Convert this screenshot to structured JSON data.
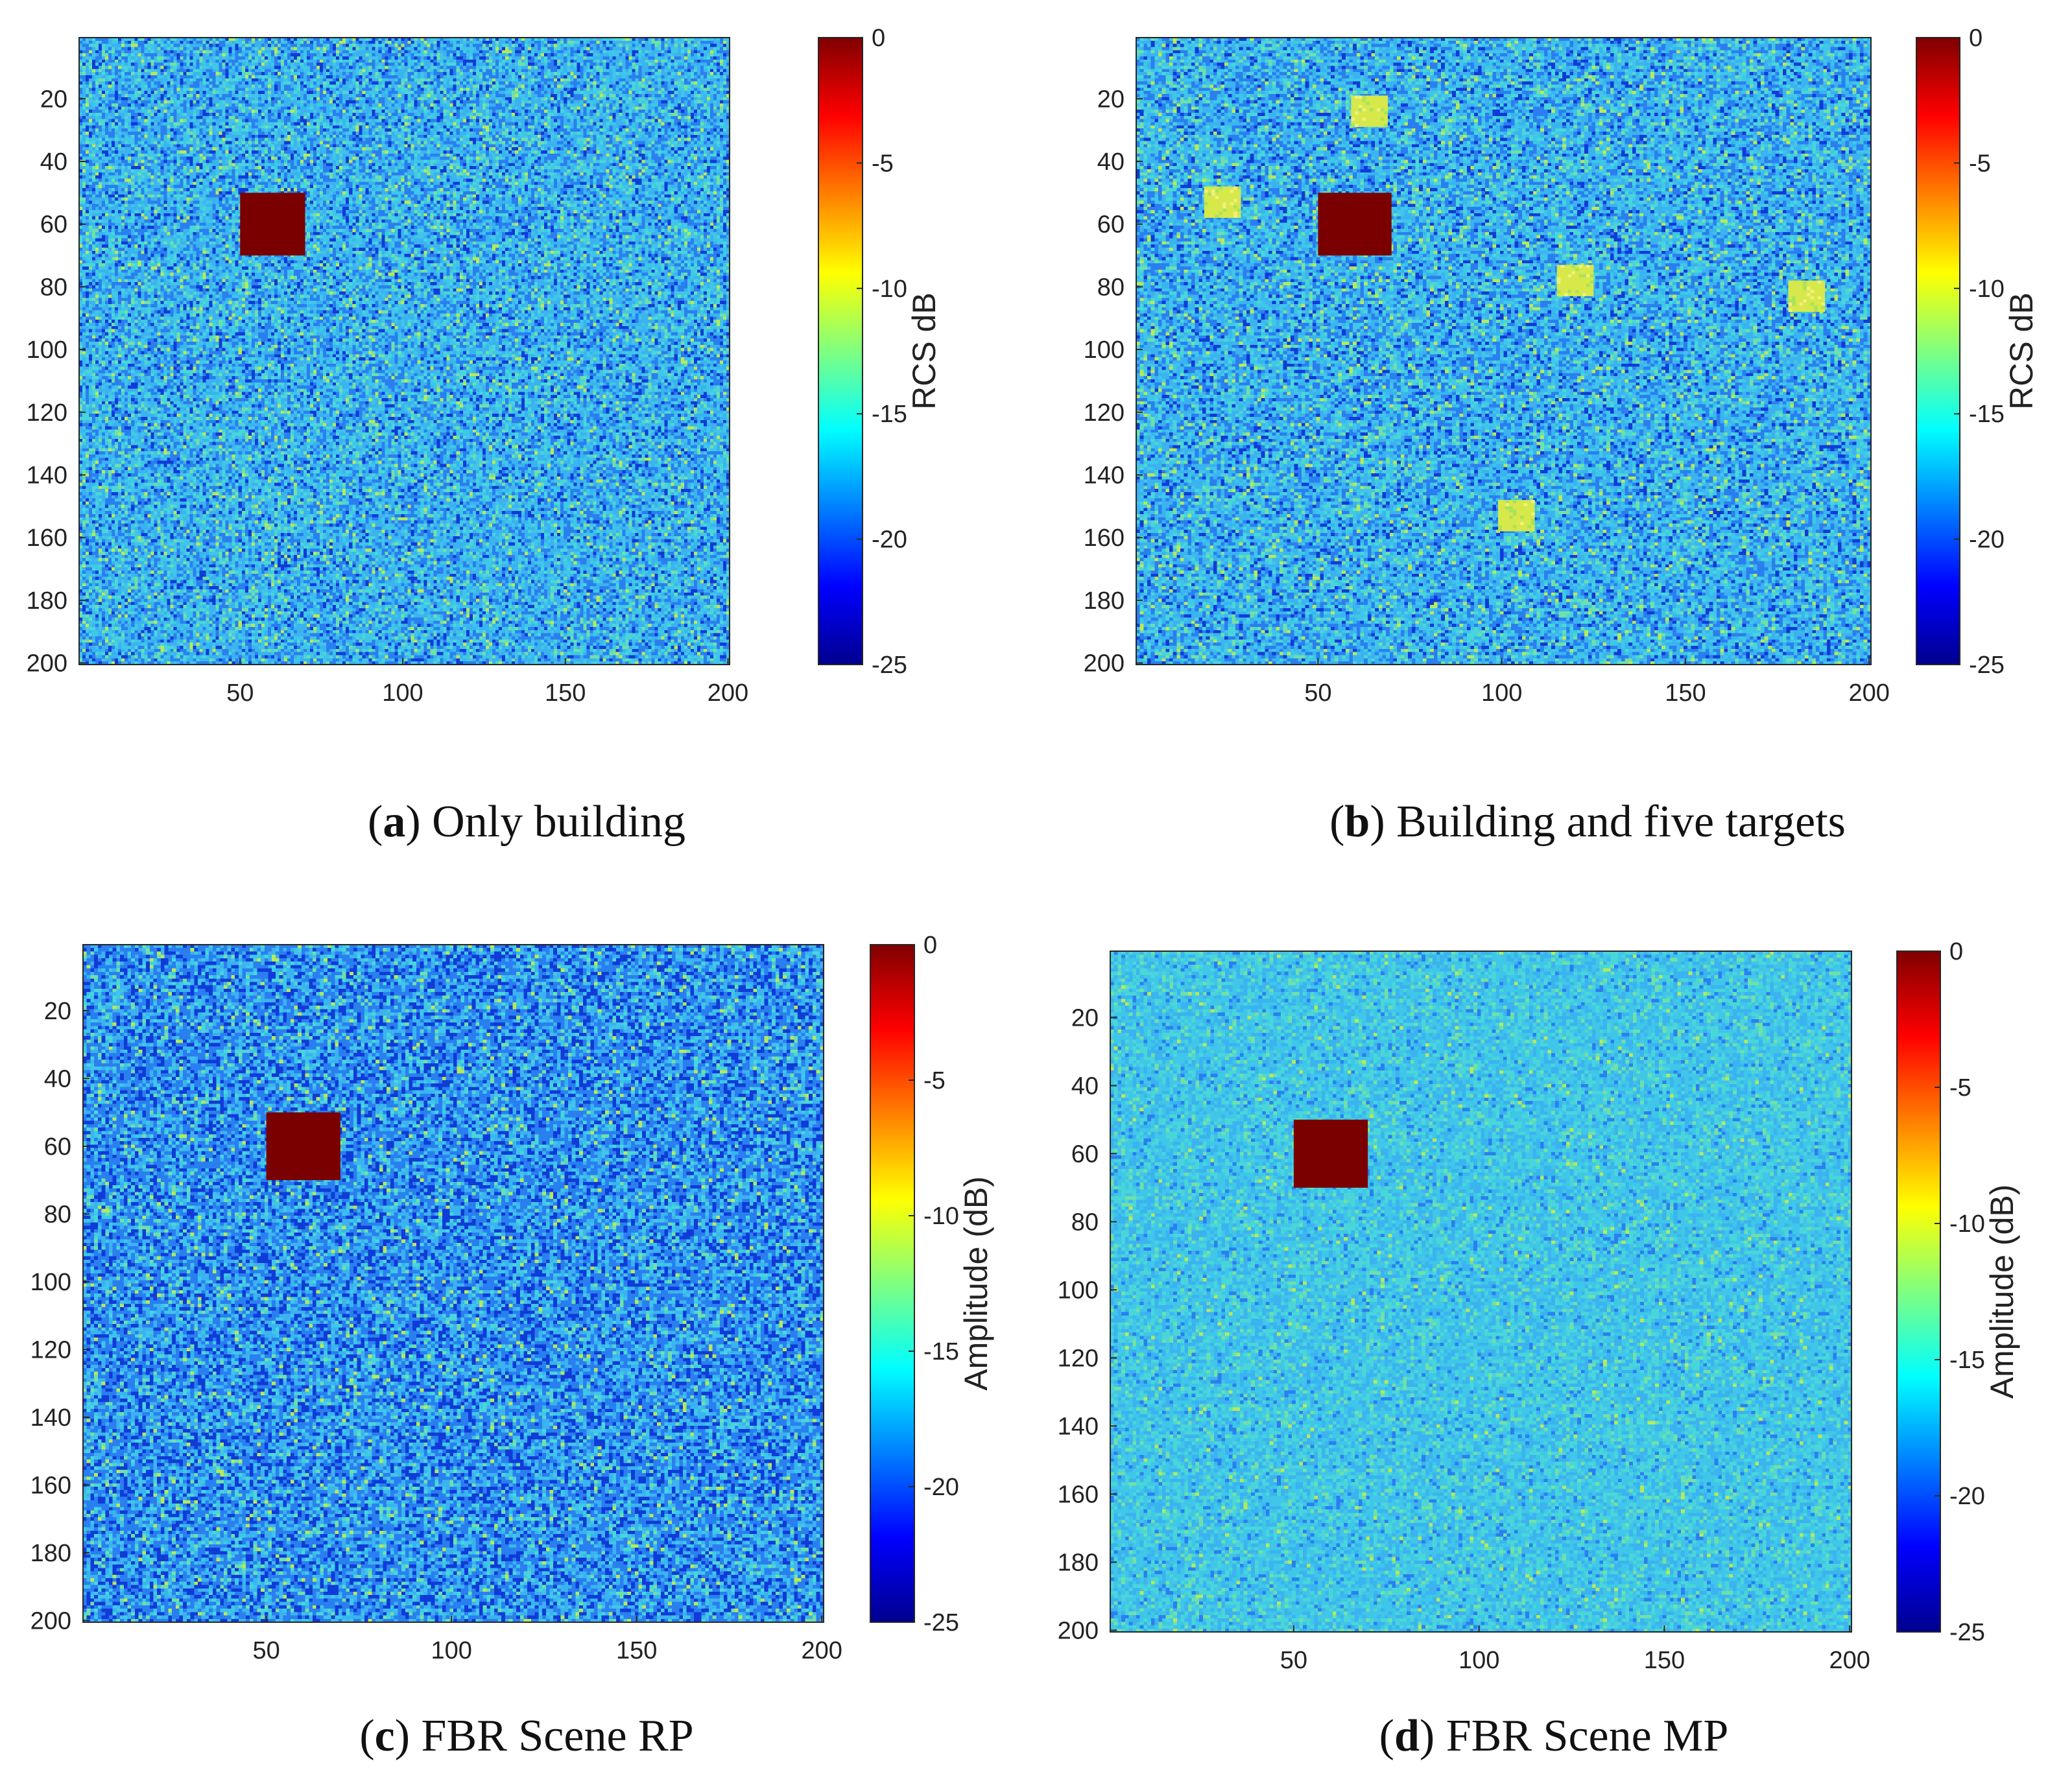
{
  "figure": {
    "background": "#ffffff",
    "noise_colors": [
      "#0f3bd8",
      "#2a7ff0",
      "#3bb3f0",
      "#3fc6e8",
      "#4ad6d9",
      "#70e0a8",
      "#b6ea5a"
    ],
    "target_color": "#d6e84a",
    "building_color": "#7a0000"
  },
  "chart_data": [
    {
      "type": "heatmap",
      "id": "a",
      "caption_letter": "a",
      "caption_text": "Only building",
      "x_ticks": [
        "50",
        "100",
        "150",
        "200"
      ],
      "y_ticks": [
        "20",
        "40",
        "60",
        "80",
        "100",
        "120",
        "140",
        "160",
        "180",
        "200"
      ],
      "xlim": [
        1,
        200
      ],
      "ylim": [
        1,
        200
      ],
      "colorbar_label": "RCS dB",
      "colorbar_ticks": [
        "0",
        "-5",
        "-10",
        "-15",
        "-20",
        "-25"
      ],
      "clim": [
        -25,
        0
      ],
      "noise_level": "medium",
      "building": {
        "x_range": [
          50,
          70
        ],
        "y_range": [
          50,
          70
        ],
        "value_db": 0
      },
      "targets": []
    },
    {
      "type": "heatmap",
      "id": "b",
      "caption_letter": "b",
      "caption_text": "Building and five targets",
      "x_ticks": [
        "50",
        "100",
        "150",
        "200"
      ],
      "y_ticks": [
        "20",
        "40",
        "60",
        "80",
        "100",
        "120",
        "140",
        "160",
        "180",
        "200"
      ],
      "xlim": [
        1,
        200
      ],
      "ylim": [
        1,
        200
      ],
      "colorbar_label": "RCS dB",
      "colorbar_ticks": [
        "0",
        "-5",
        "-10",
        "-15",
        "-20",
        "-25"
      ],
      "clim": [
        -25,
        0
      ],
      "noise_level": "medium",
      "building": {
        "x_range": [
          50,
          70
        ],
        "y_range": [
          50,
          70
        ],
        "value_db": 0
      },
      "targets": [
        {
          "x": 64,
          "y": 24,
          "value_db": -11
        },
        {
          "x": 24,
          "y": 53,
          "value_db": -11
        },
        {
          "x": 120,
          "y": 78,
          "value_db": -11
        },
        {
          "x": 183,
          "y": 83,
          "value_db": -11
        },
        {
          "x": 104,
          "y": 153,
          "value_db": -11
        }
      ]
    },
    {
      "type": "heatmap",
      "id": "c",
      "caption_letter": "c",
      "caption_text": "FBR Scene RP",
      "x_ticks": [
        "50",
        "100",
        "150",
        "200"
      ],
      "y_ticks": [
        "20",
        "40",
        "60",
        "80",
        "100",
        "120",
        "140",
        "160",
        "180",
        "200"
      ],
      "xlim": [
        1,
        200
      ],
      "ylim": [
        1,
        200
      ],
      "colorbar_label": "Amplitude (dB)",
      "colorbar_ticks": [
        "0",
        "-5",
        "-10",
        "-15",
        "-20",
        "-25"
      ],
      "clim": [
        -25,
        0
      ],
      "noise_level": "high",
      "building": {
        "x_range": [
          50,
          70
        ],
        "y_range": [
          50,
          70
        ],
        "value_db": 0
      },
      "targets": []
    },
    {
      "type": "heatmap",
      "id": "d",
      "caption_letter": "d",
      "caption_text": "FBR Scene MP",
      "x_ticks": [
        "50",
        "100",
        "150",
        "200"
      ],
      "y_ticks": [
        "20",
        "40",
        "60",
        "80",
        "100",
        "120",
        "140",
        "160",
        "180",
        "200"
      ],
      "xlim": [
        1,
        200
      ],
      "ylim": [
        1,
        200
      ],
      "colorbar_label": "Amplitude (dB)",
      "colorbar_ticks": [
        "0",
        "-5",
        "-10",
        "-15",
        "-20",
        "-25"
      ],
      "clim": [
        -25,
        0
      ],
      "noise_level": "low",
      "building": {
        "x_range": [
          50,
          70
        ],
        "y_range": [
          50,
          70
        ],
        "value_db": 0
      },
      "targets": []
    }
  ]
}
